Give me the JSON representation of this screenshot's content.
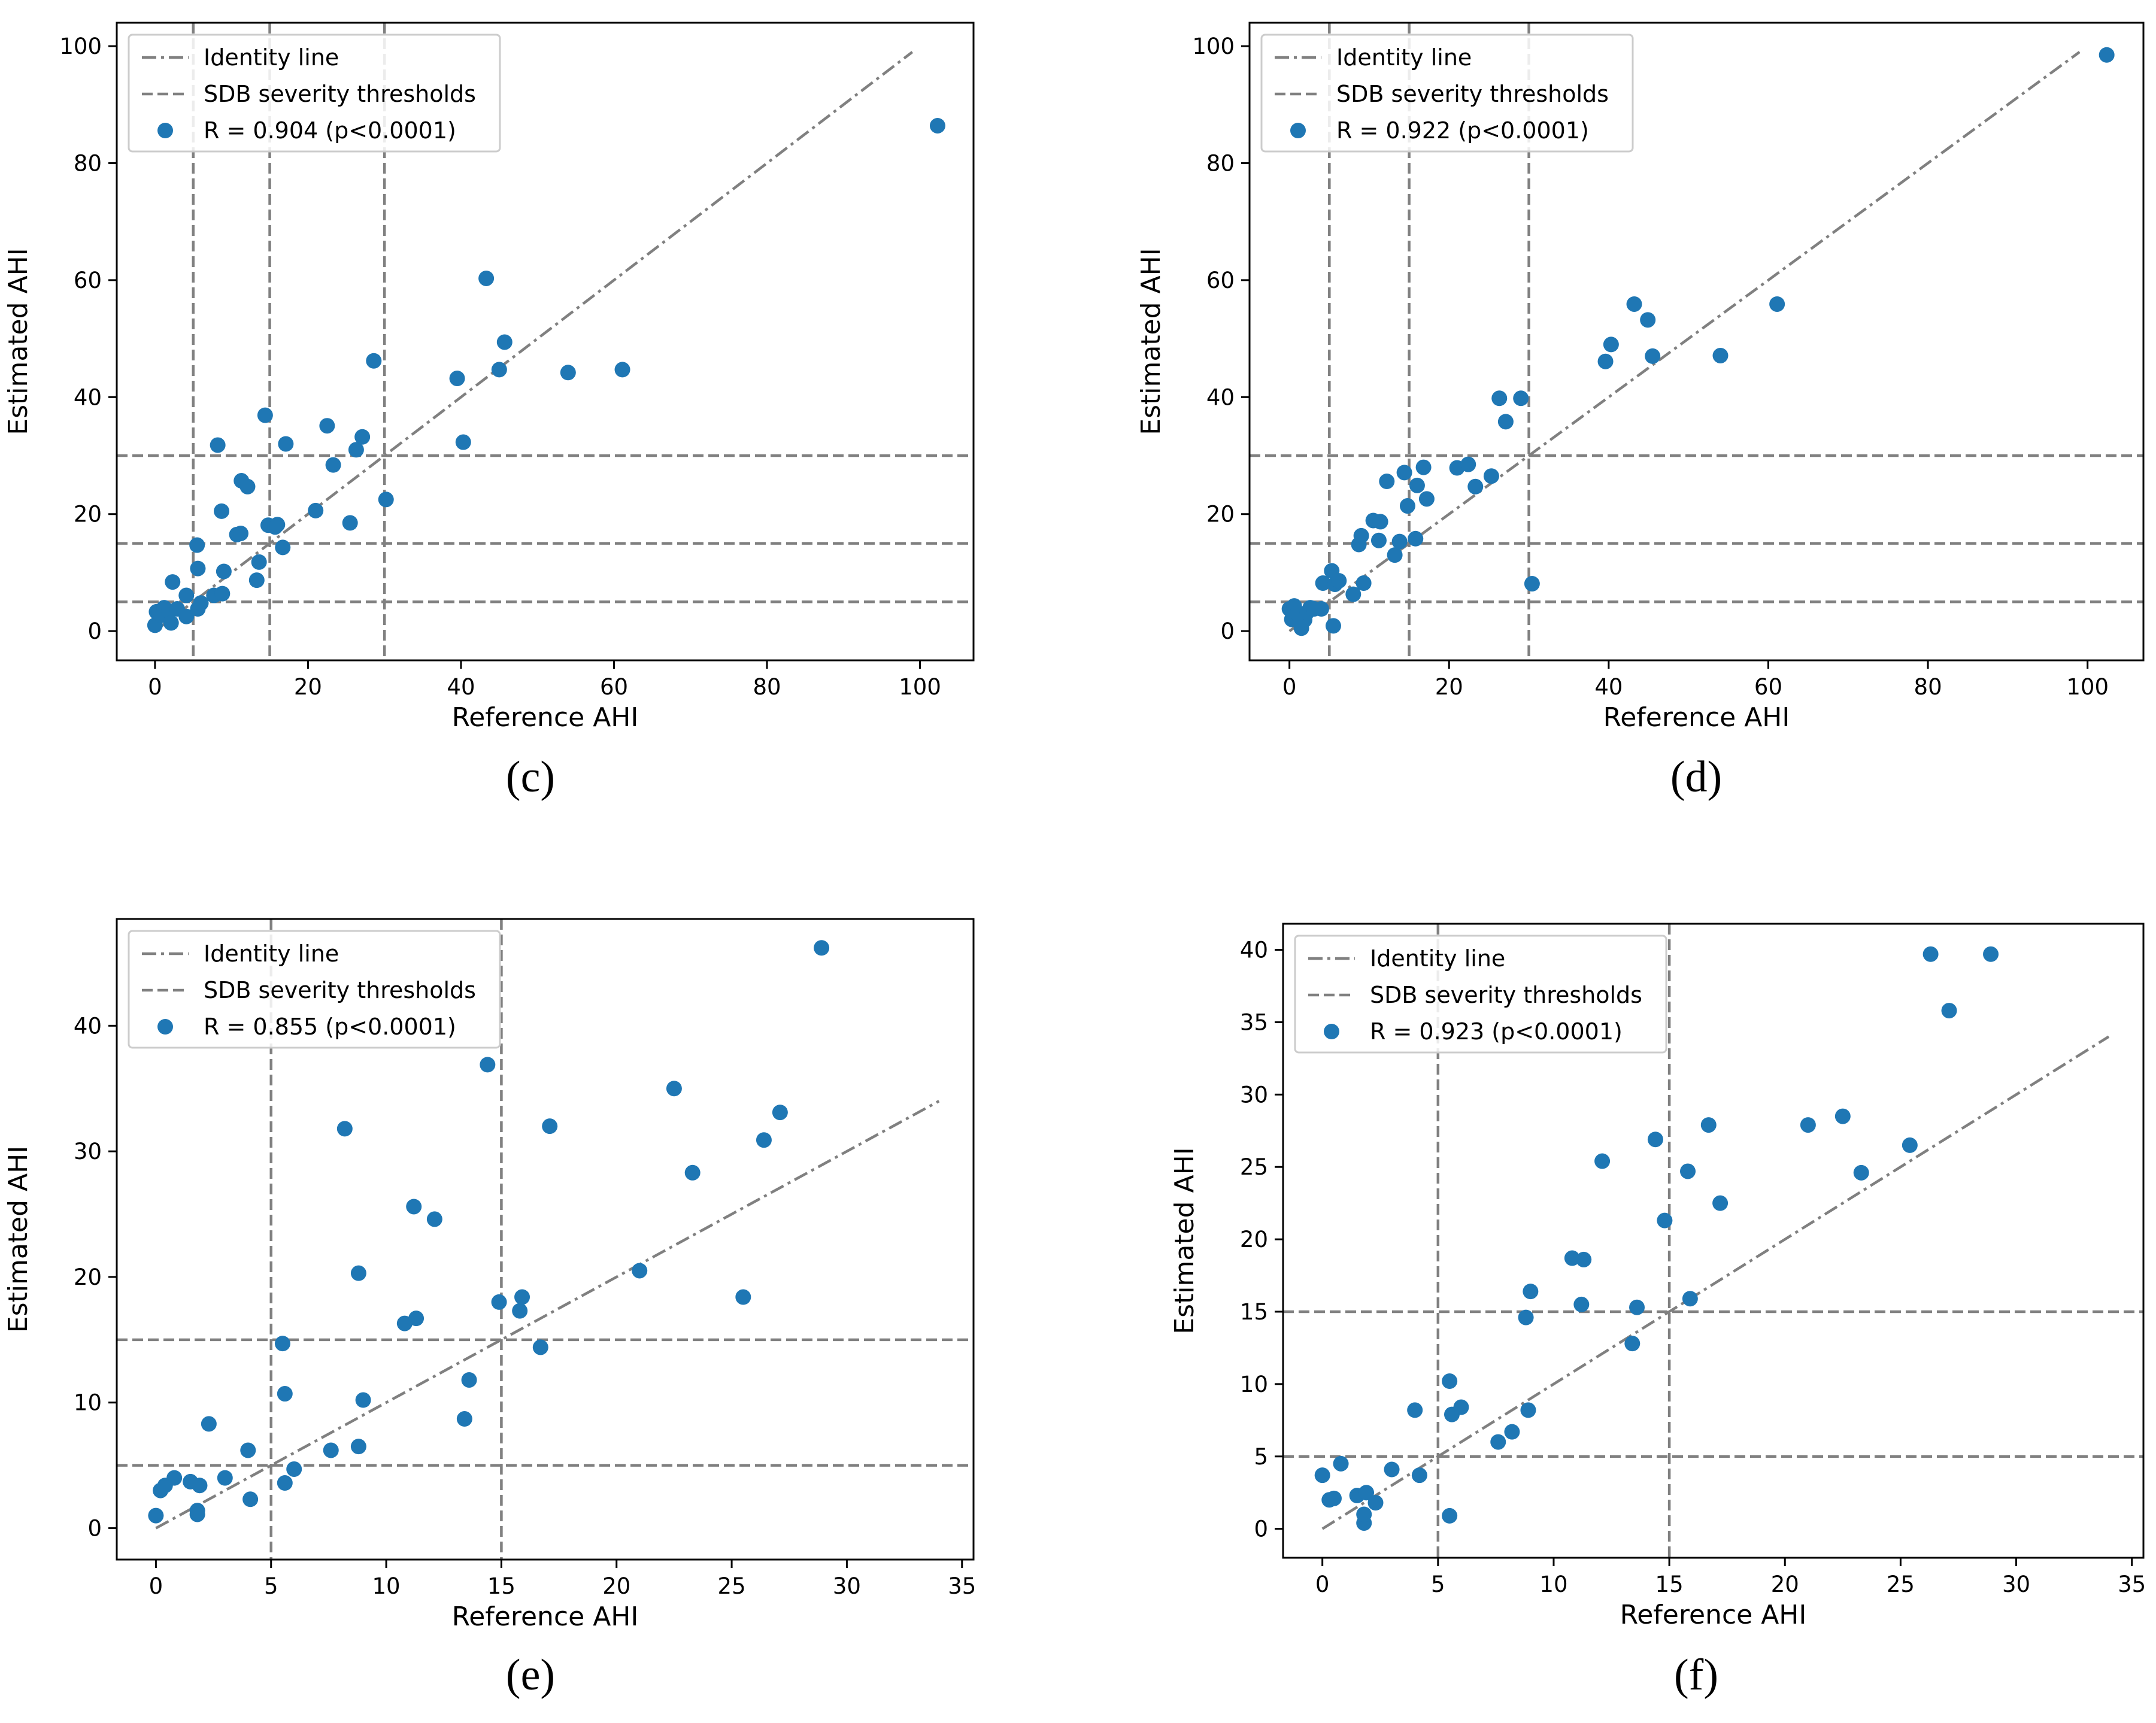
{
  "chart_data": [
    {
      "type": "scatter",
      "panel_label": "(c)",
      "xlabel": "Reference AHI",
      "ylabel": "Estimated AHI",
      "xlim": [
        -5,
        107
      ],
      "ylim": [
        -5,
        104
      ],
      "xticks": [
        0,
        20,
        40,
        60,
        80,
        100
      ],
      "yticks": [
        0,
        20,
        40,
        60,
        80,
        100
      ],
      "xtick_labels": [
        "0",
        "20",
        "40",
        "60",
        "80",
        "100"
      ],
      "ytick_labels": [
        "0",
        "20",
        "40",
        "60",
        "80",
        "100"
      ],
      "identity_line": [
        0,
        99
      ],
      "thresholds": [
        5,
        15,
        30
      ],
      "legend": {
        "position": "top-left",
        "identity_label": "Identity line",
        "threshold_label": "SDB severity thresholds",
        "series_label": "R = 0.904 (p<0.0001)"
      },
      "series": [
        {
          "name": "R = 0.904 (p<0.0001)",
          "color": "#1f77b4",
          "x": [
            0,
            0.2,
            0.5,
            0.8,
            1.2,
            1.5,
            1.8,
            2.1,
            2.3,
            2.9,
            4.1,
            4.1,
            5.5,
            5.6,
            5.6,
            6.0,
            7.7,
            8.2,
            8.7,
            8.8,
            9.0,
            10.7,
            11.2,
            11.3,
            12.1,
            13.3,
            13.6,
            14.4,
            14.8,
            15.7,
            16.0,
            16.7,
            17.1,
            21.0,
            22.5,
            23.3,
            25.5,
            26.3,
            27.1,
            28.6,
            30.2,
            39.5,
            40.3,
            43.3,
            45.0,
            45.7,
            54.0,
            61.1,
            102.3
          ],
          "y": [
            1.0,
            3.3,
            3.1,
            2.7,
            4.0,
            3.6,
            3.4,
            1.4,
            8.4,
            3.8,
            2.5,
            6.1,
            14.7,
            10.7,
            3.8,
            4.8,
            6.1,
            31.8,
            20.5,
            6.4,
            10.2,
            16.5,
            16.7,
            25.7,
            24.7,
            8.7,
            11.8,
            36.9,
            18.1,
            17.8,
            18.2,
            14.3,
            32.0,
            20.6,
            35.1,
            28.4,
            18.5,
            31.0,
            33.2,
            46.2,
            22.5,
            43.2,
            32.3,
            60.3,
            44.7,
            49.4,
            44.2,
            44.7,
            86.4
          ]
        }
      ]
    },
    {
      "type": "scatter",
      "panel_label": "(d)",
      "xlabel": "Reference AHI",
      "ylabel": "Estimated AHI",
      "xlim": [
        -5,
        107
      ],
      "ylim": [
        -5,
        104
      ],
      "xticks": [
        0,
        20,
        40,
        60,
        80,
        100
      ],
      "yticks": [
        0,
        20,
        40,
        60,
        80,
        100
      ],
      "xtick_labels": [
        "0",
        "20",
        "40",
        "60",
        "80",
        "100"
      ],
      "ytick_labels": [
        "0",
        "20",
        "40",
        "60",
        "80",
        "100"
      ],
      "identity_line": [
        0,
        99
      ],
      "thresholds": [
        5,
        15,
        30
      ],
      "legend": {
        "position": "top-left",
        "identity_label": "Identity line",
        "threshold_label": "SDB severity thresholds",
        "series_label": "R = 0.922 (p<0.0001)"
      },
      "series": [
        {
          "name": "R = 0.922 (p<0.0001)",
          "color": "#1f77b4",
          "x": [
            0,
            0.3,
            0.6,
            1.0,
            1.5,
            1.9,
            2.2,
            2.6,
            3.1,
            4.0,
            4.2,
            5.3,
            5.5,
            5.7,
            6.2,
            8.0,
            8.7,
            9.0,
            9.3,
            10.5,
            11.2,
            11.4,
            12.2,
            13.2,
            13.8,
            14.4,
            14.8,
            15.8,
            16.0,
            16.8,
            17.2,
            21.0,
            22.4,
            23.3,
            25.3,
            26.3,
            27.1,
            29.0,
            30.4,
            39.6,
            40.3,
            43.2,
            44.9,
            45.5,
            54.0,
            61.1,
            102.4
          ],
          "y": [
            3.8,
            2.0,
            4.3,
            3.0,
            0.5,
            1.9,
            3.2,
            4.0,
            3.8,
            3.8,
            8.2,
            10.3,
            0.9,
            8.0,
            8.6,
            6.3,
            14.8,
            16.3,
            8.2,
            18.9,
            15.5,
            18.7,
            25.6,
            13.0,
            15.3,
            27.1,
            21.4,
            15.8,
            24.9,
            28.0,
            22.6,
            27.9,
            28.5,
            24.7,
            26.5,
            39.8,
            35.8,
            39.8,
            8.1,
            46.1,
            49.0,
            55.9,
            53.2,
            47.0,
            47.1,
            55.9,
            98.5
          ]
        }
      ]
    },
    {
      "type": "scatter",
      "panel_label": "(e)",
      "xlabel": "Reference AHI",
      "ylabel": "Estimated AHI",
      "xlim": [
        -1.7,
        35.5
      ],
      "ylim": [
        -2.5,
        48.5
      ],
      "xticks": [
        0,
        5,
        10,
        15,
        20,
        25,
        30,
        35
      ],
      "yticks": [
        0,
        10,
        20,
        30,
        40
      ],
      "xtick_labels": [
        "0",
        "5",
        "10",
        "15",
        "20",
        "25",
        "30",
        "35"
      ],
      "ytick_labels": [
        "0",
        "10",
        "20",
        "30",
        "40"
      ],
      "identity_line": [
        0,
        34
      ],
      "thresholds": [
        5,
        15
      ],
      "legend": {
        "position": "top-left",
        "identity_label": "Identity line",
        "threshold_label": "SDB severity thresholds",
        "series_label": "R = 0.855 (p<0.0001)"
      },
      "series": [
        {
          "name": "R = 0.855 (p<0.0001)",
          "color": "#1f77b4",
          "x": [
            0,
            0.2,
            0.4,
            0.8,
            1.5,
            1.8,
            1.8,
            1.9,
            2.3,
            3.0,
            4.0,
            4.1,
            5.5,
            5.6,
            5.6,
            6.0,
            7.6,
            8.2,
            8.8,
            8.8,
            9.0,
            10.8,
            11.2,
            11.3,
            12.1,
            13.4,
            13.6,
            14.4,
            14.9,
            15.8,
            15.9,
            16.7,
            17.1,
            21.0,
            22.5,
            23.3,
            25.5,
            26.4,
            27.1,
            28.9
          ],
          "y": [
            1.0,
            3.0,
            3.4,
            4.0,
            3.7,
            1.4,
            1.1,
            3.4,
            8.3,
            4.0,
            6.2,
            2.3,
            14.7,
            10.7,
            3.6,
            4.7,
            6.2,
            31.8,
            20.3,
            6.5,
            10.2,
            16.3,
            25.6,
            16.7,
            24.6,
            8.7,
            11.8,
            36.9,
            18.0,
            17.3,
            18.4,
            14.4,
            32.0,
            20.5,
            35.0,
            28.3,
            18.4,
            30.9,
            33.1,
            46.2
          ]
        }
      ]
    },
    {
      "type": "scatter",
      "panel_label": "(f)",
      "xlabel": "Reference AHI",
      "ylabel": "Estimated AHI",
      "xlim": [
        -1.7,
        35.5
      ],
      "ylim": [
        -2,
        41.8
      ],
      "xticks": [
        0,
        5,
        10,
        15,
        20,
        25,
        30,
        35
      ],
      "yticks": [
        0,
        5,
        10,
        15,
        20,
        25,
        30,
        35,
        40
      ],
      "xtick_labels": [
        "0",
        "5",
        "10",
        "15",
        "20",
        "25",
        "30",
        "35"
      ],
      "ytick_labels": [
        "0",
        "5",
        "10",
        "15",
        "20",
        "25",
        "30",
        "35",
        "40"
      ],
      "identity_line": [
        0,
        34
      ],
      "thresholds": [
        5,
        15
      ],
      "legend": {
        "position": "top-left",
        "identity_label": "Identity line",
        "threshold_label": "SDB severity thresholds",
        "series_label": "R = 0.923 (p<0.0001)"
      },
      "series": [
        {
          "name": "R = 0.923 (p<0.0001)",
          "color": "#1f77b4",
          "x": [
            0,
            0.3,
            0.5,
            0.8,
            1.5,
            1.8,
            1.8,
            1.9,
            2.3,
            3.0,
            4.0,
            4.2,
            5.5,
            5.5,
            5.6,
            6.0,
            7.6,
            8.2,
            8.8,
            8.9,
            9.0,
            10.8,
            11.2,
            11.3,
            12.1,
            13.4,
            13.6,
            14.4,
            14.8,
            15.8,
            15.9,
            16.7,
            17.2,
            21.0,
            22.5,
            23.3,
            25.4,
            26.3,
            27.1,
            28.9
          ],
          "y": [
            3.7,
            2.0,
            2.1,
            4.5,
            2.3,
            0.4,
            1.0,
            2.5,
            1.8,
            4.1,
            8.2,
            3.7,
            10.2,
            0.9,
            7.9,
            8.4,
            6.0,
            6.7,
            14.6,
            8.2,
            16.4,
            18.7,
            15.5,
            18.6,
            25.4,
            12.8,
            15.3,
            26.9,
            21.3,
            24.7,
            15.9,
            27.9,
            22.5,
            27.9,
            28.5,
            24.6,
            26.5,
            39.7,
            35.8,
            39.7
          ]
        }
      ]
    }
  ]
}
